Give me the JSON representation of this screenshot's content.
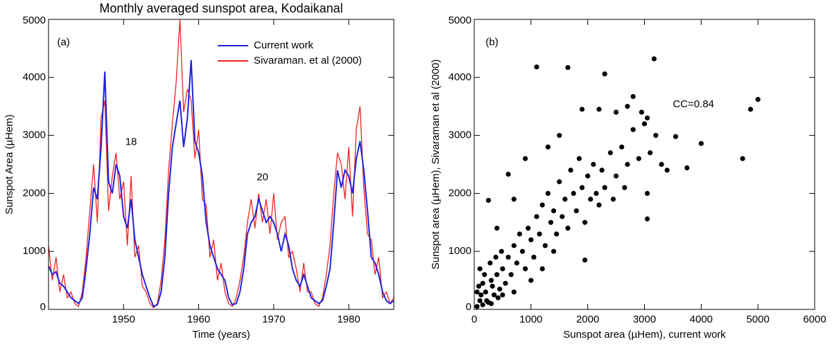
{
  "chart_data": [
    {
      "type": "line",
      "title": "Monthly averaged sunspot area, Kodaikanal",
      "xlabel": "Time (years)",
      "ylabel": "Sunspot Area (µHem)",
      "annotations": [
        "(a)",
        "18",
        "20"
      ],
      "xlim": [
        1940,
        1986
      ],
      "xticks": [
        1950,
        1960,
        1970,
        1980
      ],
      "ylim": [
        0,
        5000
      ],
      "yticks": [
        0,
        1000,
        2000,
        3000,
        4000,
        5000
      ],
      "legend": "upper right",
      "x": [
        1940,
        1940.5,
        1941,
        1941.5,
        1942,
        1942.5,
        1943,
        1943.5,
        1944,
        1944.5,
        1945,
        1945.5,
        1946,
        1946.5,
        1947,
        1947.5,
        1948,
        1948.5,
        1949,
        1949.5,
        1950,
        1950.5,
        1951,
        1951.5,
        1952,
        1952.5,
        1953,
        1953.5,
        1954,
        1954.5,
        1955,
        1955.5,
        1956,
        1956.5,
        1957,
        1957.5,
        1958,
        1958.5,
        1959,
        1959.5,
        1960,
        1960.5,
        1961,
        1961.5,
        1962,
        1962.5,
        1963,
        1963.5,
        1964,
        1964.5,
        1965,
        1965.5,
        1966,
        1966.5,
        1967,
        1967.5,
        1968,
        1968.5,
        1969,
        1969.5,
        1970,
        1970.5,
        1971,
        1971.5,
        1972,
        1972.5,
        1973,
        1973.5,
        1974,
        1974.5,
        1975,
        1975.5,
        1976,
        1976.5,
        1977,
        1977.5,
        1978,
        1978.5,
        1979,
        1979.5,
        1980,
        1980.5,
        1981,
        1981.5,
        1982,
        1982.5,
        1983,
        1983.5,
        1984,
        1984.5,
        1985,
        1985.5,
        1986
      ],
      "series": [
        {
          "name": "Current work",
          "color": "#2222dd",
          "values": [
            750,
            600,
            650,
            450,
            400,
            300,
            200,
            150,
            100,
            200,
            700,
            1300,
            2100,
            1900,
            2800,
            4100,
            2200,
            2000,
            2500,
            2300,
            1600,
            1400,
            1900,
            1200,
            900,
            600,
            400,
            200,
            50,
            80,
            300,
            900,
            2000,
            2800,
            3200,
            3600,
            2800,
            3300,
            4300,
            2900,
            2700,
            2300,
            1500,
            1100,
            900,
            700,
            600,
            500,
            200,
            80,
            100,
            300,
            700,
            1300,
            1500,
            1600,
            1900,
            1700,
            1500,
            1600,
            1500,
            1300,
            1000,
            1300,
            1100,
            700,
            500,
            400,
            600,
            400,
            200,
            150,
            100,
            150,
            400,
            700,
            1500,
            2400,
            2100,
            2400,
            2300,
            2000,
            2600,
            2900,
            2400,
            1700,
            900,
            800,
            600,
            300,
            150,
            100,
            150
          ]
        },
        {
          "name": "Sivaraman. et al (2000)",
          "color": "#ee2222",
          "values": [
            1100,
            500,
            900,
            300,
            600,
            200,
            300,
            100,
            50,
            300,
            900,
            1700,
            2500,
            1500,
            3300,
            3600,
            1700,
            2300,
            2700,
            1900,
            2200,
            1100,
            2300,
            900,
            1100,
            400,
            300,
            100,
            30,
            100,
            500,
            1200,
            2400,
            3200,
            3900,
            5000,
            3400,
            3800,
            3600,
            2600,
            3100,
            1900,
            1800,
            900,
            1200,
            500,
            800,
            300,
            100,
            50,
            200,
            500,
            900,
            1500,
            1900,
            1400,
            2000,
            1500,
            1900,
            1300,
            2000,
            1200,
            1500,
            1600,
            900,
            1000,
            700,
            300,
            800,
            300,
            300,
            100,
            50,
            200,
            600,
            1100,
            2000,
            2700,
            2500,
            1900,
            2800,
            1600,
            3100,
            3500,
            2100,
            1300,
            1200,
            600,
            900,
            200,
            300,
            100,
            200
          ]
        }
      ]
    },
    {
      "type": "scatter",
      "xlabel": "Sunspot area (µHem), current work",
      "ylabel": "Sunspot area (µHem), Sivaraman et al (2000)",
      "annotations": [
        "(b)",
        "CC=0.84"
      ],
      "annotation_color": "#dd2222",
      "color": "#000000",
      "xlim": [
        0,
        6000
      ],
      "xticks": [
        0,
        1000,
        2000,
        3000,
        4000,
        5000,
        6000
      ],
      "ylim": [
        0,
        5000
      ],
      "yticks": [
        0,
        1000,
        2000,
        3000,
        4000,
        5000
      ],
      "x": [
        50,
        100,
        150,
        200,
        250,
        300,
        350,
        400,
        450,
        500,
        80,
        120,
        180,
        220,
        280,
        320,
        380,
        420,
        480,
        550,
        600,
        650,
        700,
        750,
        800,
        850,
        900,
        950,
        1000,
        1050,
        1100,
        1150,
        1200,
        1250,
        1300,
        1350,
        1400,
        1450,
        1500,
        1550,
        1600,
        1650,
        1700,
        1750,
        1800,
        1850,
        1900,
        1950,
        2000,
        2050,
        2100,
        2150,
        2200,
        2250,
        2300,
        2400,
        2450,
        2500,
        2600,
        2650,
        2700,
        2800,
        2900,
        3000,
        3050,
        3100,
        3200,
        3300,
        3400,
        250,
        600,
        700,
        900,
        400,
        1300,
        1500,
        1900,
        2200,
        2500,
        2700,
        2950,
        3050,
        1100,
        1650,
        2300,
        3170,
        2800,
        5000,
        4870,
        4000,
        4730,
        3750,
        3050,
        1950,
        3550,
        100,
        50,
        300,
        500,
        150,
        700,
        1000,
        1200,
        1400
      ],
      "y": [
        50,
        150,
        80,
        300,
        120,
        500,
        250,
        600,
        350,
        700,
        400,
        250,
        600,
        150,
        800,
        400,
        900,
        200,
        1000,
        450,
        900,
        600,
        1100,
        800,
        1300,
        1000,
        700,
        1400,
        1200,
        900,
        1600,
        1300,
        1800,
        1100,
        2000,
        1500,
        1700,
        1300,
        2200,
        1600,
        1900,
        1400,
        2400,
        2000,
        1700,
        2600,
        2100,
        1500,
        2300,
        1900,
        2500,
        2000,
        1800,
        2400,
        2100,
        2700,
        1900,
        2300,
        2800,
        2100,
        2500,
        3100,
        2600,
        3200,
        2000,
        2700,
        3000,
        2500,
        2400,
        1880,
        2330,
        1900,
        2600,
        1400,
        2800,
        3000,
        3450,
        3450,
        3400,
        3500,
        3400,
        3300,
        4180,
        4170,
        4060,
        4320,
        3670,
        3620,
        3450,
        2860,
        2600,
        2440,
        1560,
        850,
        2980,
        700,
        300,
        100,
        250,
        450,
        300,
        500,
        700,
        1000
      ]
    }
  ]
}
